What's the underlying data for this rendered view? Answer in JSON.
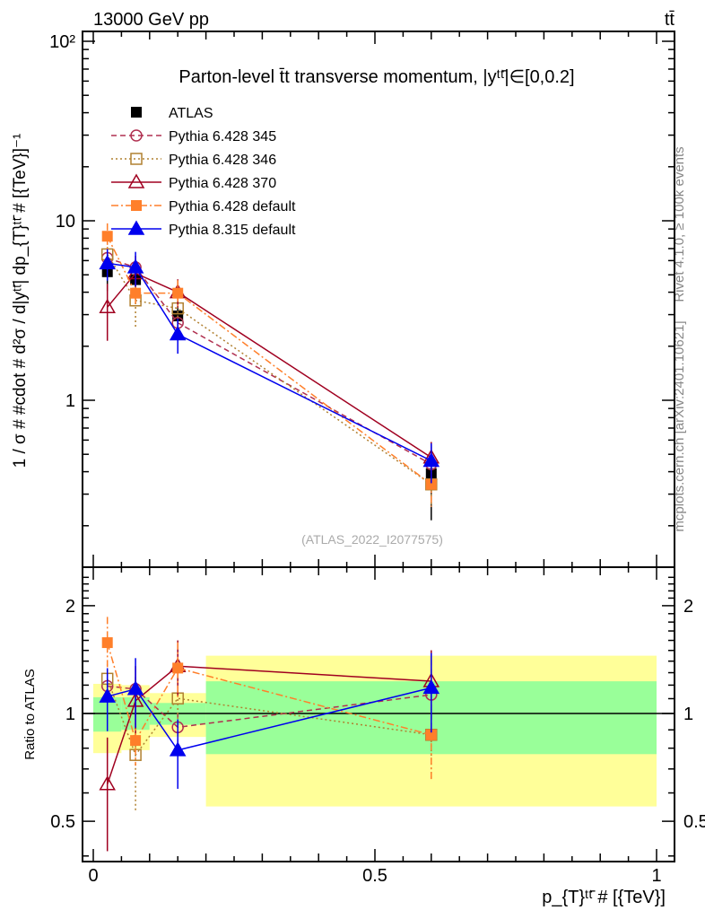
{
  "header": {
    "left": "13000 GeV pp",
    "right": "tt̄"
  },
  "side": {
    "rivet": "Rivet 4.1.0, ≥ 100k events",
    "mcplots": "mcplots.cern.ch [arXiv:2401.10621]"
  },
  "chart_data": [
    {
      "type": "line",
      "title": "Parton-level t̄t transverse momentum, |yᵗᵗ̄|∈[0,0.2]",
      "ylabel": "1 / σ # #cdot # d²σ / d|yᵗᵗ̄| dp_{T}ᵗᵗ̄ # [{TeV}]⁻¹",
      "yscale": "log",
      "ylim": [
        0.117,
        112
      ],
      "xlim": [
        -0.02,
        1.03
      ],
      "yticks": [
        {
          "v": 1,
          "label": "1"
        },
        {
          "v": 10,
          "label": "10"
        },
        {
          "v": 100,
          "label": "10²"
        }
      ],
      "watermark": "(ATLAS_2022_I2077575)",
      "legend_position": "top-left",
      "x": [
        0.025,
        0.075,
        0.15,
        0.6
      ],
      "bins": [
        [
          0,
          0.05
        ],
        [
          0.05,
          0.1
        ],
        [
          0.1,
          0.2
        ],
        [
          0.2,
          1.0
        ]
      ],
      "series": [
        {
          "name": "ATLAS",
          "color": "#000000",
          "marker": "filled-square",
          "dash": "",
          "values": [
            5.2,
            4.7,
            2.95,
            0.39
          ],
          "relerr": [
            0.22,
            0.21,
            0.15,
            0.45
          ]
        },
        {
          "name": "Pythia 6.428 345",
          "color": "#b03050",
          "marker": "open-circle",
          "dash": "6,4",
          "values": [
            6.2,
            5.5,
            2.7,
            0.44
          ],
          "relerr": [
            0.08,
            0.08,
            0.1,
            0.25
          ]
        },
        {
          "name": "Pythia 6.428 346",
          "color": "#b08030",
          "marker": "open-square",
          "dash": "2,3",
          "values": [
            6.5,
            3.6,
            3.25,
            0.34
          ],
          "relerr": [
            0.1,
            0.3,
            0.15,
            0.25
          ]
        },
        {
          "name": "Pythia 6.428 370",
          "color": "#a00020",
          "marker": "open-triangle",
          "dash": "",
          "values": [
            3.3,
            5.1,
            4.0,
            0.48
          ],
          "relerr": [
            0.35,
            0.25,
            0.18,
            0.22
          ]
        },
        {
          "name": "Pythia 6.428 default",
          "color": "#ff7f2a",
          "marker": "filled-square",
          "dash": "8,3,2,3",
          "values": [
            8.2,
            3.95,
            3.95,
            0.34
          ],
          "relerr": [
            0.18,
            0.15,
            0.18,
            0.25
          ]
        },
        {
          "name": "Pythia 8.315 default",
          "color": "#0000ee",
          "marker": "filled-triangle",
          "dash": "",
          "values": [
            5.8,
            5.5,
            2.33,
            0.46
          ],
          "relerr": [
            0.2,
            0.22,
            0.22,
            0.25
          ]
        }
      ]
    },
    {
      "type": "line",
      "ylabel": "Ratio to ATLAS",
      "xlabel": "p_{T}ᵗᵗ̄ # [{TeV}]",
      "yscale": "log",
      "ylim": [
        0.386,
        2.56
      ],
      "yticks": [
        {
          "v": 0.5,
          "label": "0.5"
        },
        {
          "v": 1,
          "label": "1"
        },
        {
          "v": 2,
          "label": "2"
        }
      ],
      "xticks": [
        {
          "v": 0,
          "label": "0"
        },
        {
          "v": 0.5,
          "label": "0.5"
        },
        {
          "v": 1,
          "label": "1"
        }
      ],
      "band_total": [
        [
          0.775,
          1.21
        ],
        [
          0.79,
          1.2
        ],
        [
          0.86,
          1.14
        ],
        [
          0.55,
          1.45
        ]
      ],
      "band_stat": [
        [
          0.89,
          1.11
        ],
        [
          0.9,
          1.11
        ],
        [
          0.93,
          1.07
        ],
        [
          0.77,
          1.23
        ]
      ]
    }
  ]
}
